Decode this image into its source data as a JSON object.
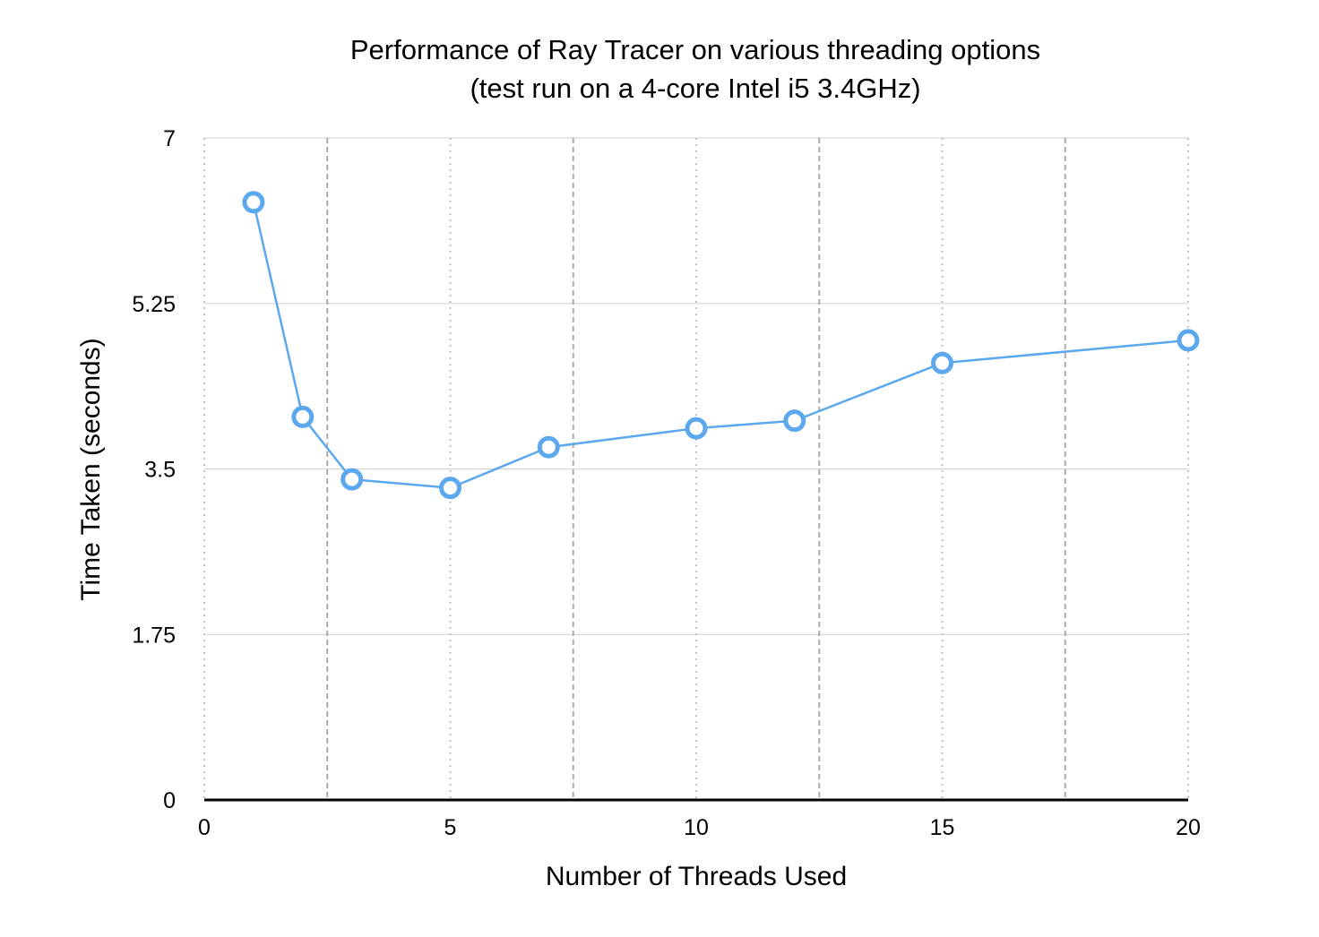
{
  "chart_data": {
    "type": "line",
    "title": "Performance of Ray Tracer on various threading options",
    "subtitle": "(test run on a 4-core Intel i5 3.4GHz)",
    "xlabel": "Number of Threads Used",
    "ylabel": "Time Taken (seconds)",
    "xlim": [
      0,
      20
    ],
    "ylim": [
      0,
      7
    ],
    "x_ticks": [
      "0",
      "5",
      "10",
      "15",
      "20"
    ],
    "y_ticks": [
      "0",
      "1.75",
      "3.5",
      "5.25",
      "7"
    ],
    "grid": true,
    "legend": "none",
    "series": [
      {
        "x": [
          1,
          2,
          3,
          5,
          7,
          10,
          12,
          15,
          20
        ],
        "y": [
          6.32,
          4.05,
          3.39,
          3.3,
          3.73,
          3.93,
          4.01,
          4.62,
          4.86
        ],
        "color": "#5ba8ee"
      }
    ]
  }
}
